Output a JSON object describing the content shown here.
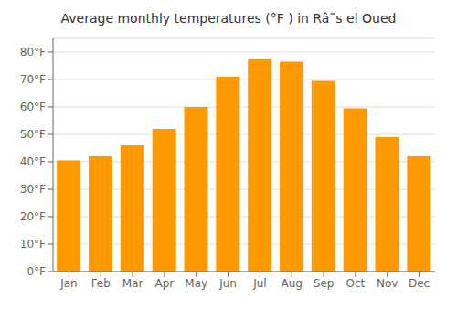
{
  "chart_data": {
    "type": "bar",
    "title": "Average monthly temperatures (°F ) in Râ˜s el Oued",
    "categories": [
      "Jan",
      "Feb",
      "Mar",
      "Apr",
      "May",
      "Jun",
      "Jul",
      "Aug",
      "Sep",
      "Oct",
      "Nov",
      "Dec"
    ],
    "values": [
      40.5,
      42.0,
      46.0,
      52.0,
      60.0,
      71.0,
      77.5,
      76.5,
      69.5,
      59.5,
      49.0,
      42.0
    ],
    "color": "#FF9900",
    "ylim": [
      0,
      85
    ],
    "yticks": [
      {
        "value": 0,
        "label": "0°F"
      },
      {
        "value": 10,
        "label": "10°F"
      },
      {
        "value": 20,
        "label": "20°F"
      },
      {
        "value": 30,
        "label": "30°F"
      },
      {
        "value": 40,
        "label": "40°F"
      },
      {
        "value": 50,
        "label": "50°F"
      },
      {
        "value": 60,
        "label": "60°F"
      },
      {
        "value": 70,
        "label": "70°F"
      },
      {
        "value": 80,
        "label": "80°F"
      }
    ],
    "grid": true
  }
}
